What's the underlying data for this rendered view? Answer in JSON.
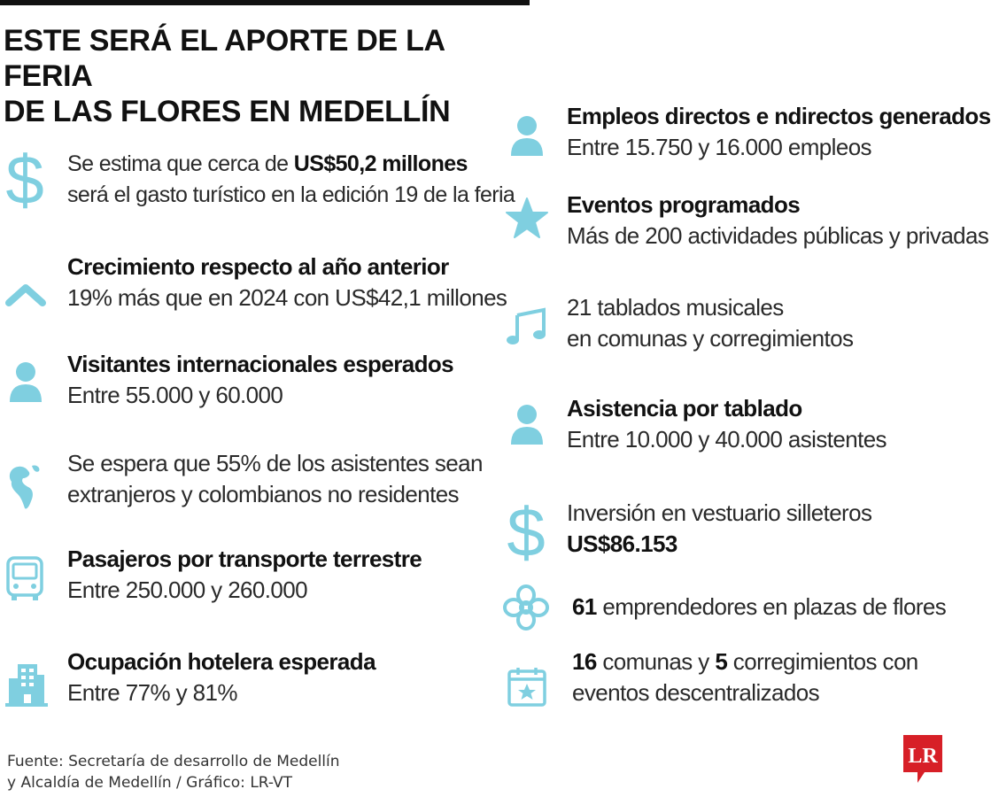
{
  "title_line1": "ESTE SERÁ EL APORTE DE LA FERIA",
  "title_line2": "DE LAS FLORES EN MEDELLÍN",
  "accent_color": "#7fcfe0",
  "left_items": [
    {
      "icon": "dollar-icon",
      "line1_pre": "Se estima que cerca de ",
      "line1_bold": "US$50,2 millones",
      "line2": "será el gasto turístico en la edición 19 de la feria"
    },
    {
      "icon": "chevron-up-icon",
      "heading": "Crecimiento respecto al año anterior",
      "line": "19% más que en 2024 con US$42,1 millones"
    },
    {
      "icon": "person-icon",
      "heading": "Visitantes internacionales esperados",
      "line": "Entre 55.000 y 60.000"
    },
    {
      "icon": "globe-americas-icon",
      "line1": "Se espera que 55% de los asistentes sean",
      "line2": "extranjeros y colombianos no residentes"
    },
    {
      "icon": "bus-icon",
      "heading": "Pasajeros por transporte terrestre",
      "line": "Entre 250.000 y 260.000"
    },
    {
      "icon": "hotel-icon",
      "heading": "Ocupación hotelera esperada",
      "line": "Entre 77% y 81%"
    }
  ],
  "right_items": [
    {
      "icon": "person-icon",
      "heading": "Empleos directos e ndirectos generados",
      "line": "Entre 15.750 y 16.000 empleos"
    },
    {
      "icon": "star-icon",
      "heading": "Eventos programados",
      "line": "Más de 200 actividades públicas y privadas"
    },
    {
      "icon": "music-note-icon",
      "line1": "21 tablados musicales",
      "line2": "en comunas y corregimientos"
    },
    {
      "icon": "person-icon",
      "heading": "Asistencia por tablado",
      "line": "Entre 10.000 y 40.000 asistentes"
    },
    {
      "icon": "dollar-icon",
      "line1": "Inversión en vestuario silleteros",
      "line2_bold": "US$86.153"
    },
    {
      "icon": "flower-icon",
      "bold": "61",
      "rest": " emprendedores en plazas de flores"
    },
    {
      "icon": "calendar-star-icon",
      "bold1": "16",
      "mid": " comunas y ",
      "bold2": "5",
      "rest": " corregimientos con",
      "line2": "eventos descentralizados"
    }
  ],
  "source_line1": "Fuente: Secretaría de desarrollo de Medellín",
  "source_line2": "y Alcaldía de Medellín / Gráfico: LR-VT",
  "logo_text": "LR",
  "logo_color": "#d71f27"
}
